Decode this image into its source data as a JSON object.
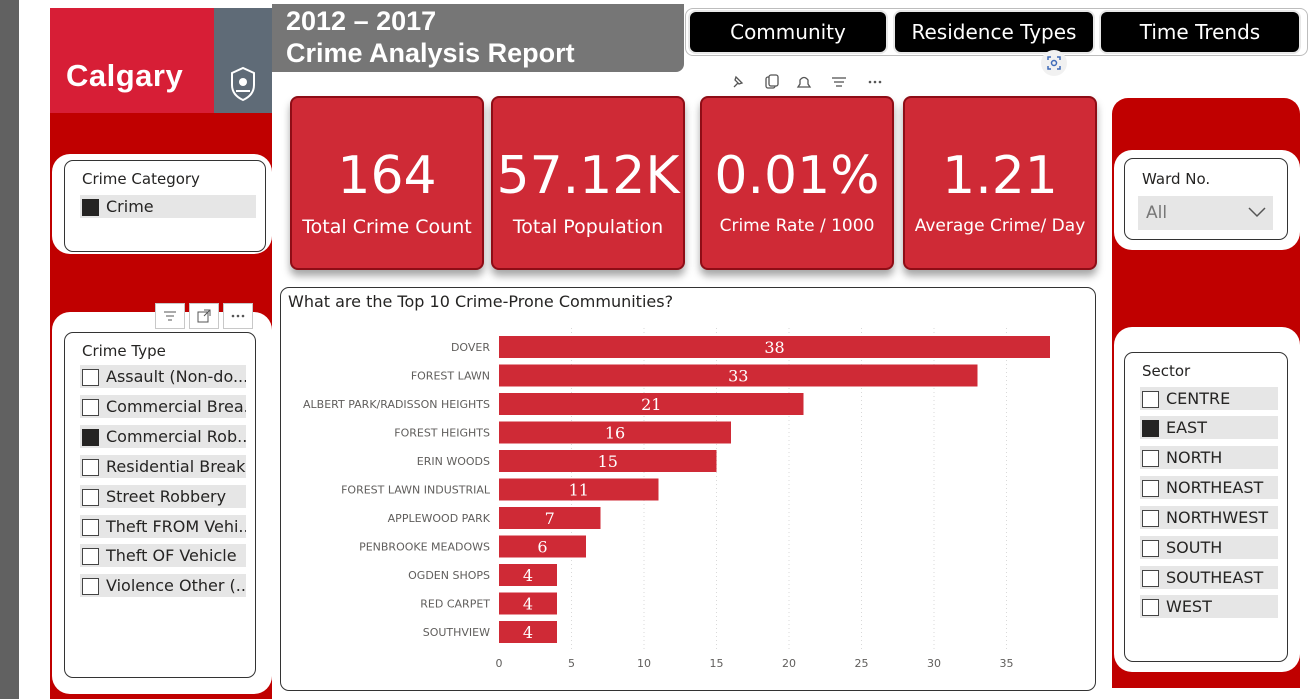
{
  "header": {
    "logo_text": "Calgary",
    "title_line1": "2012 – 2017",
    "title_line2": "Crime Analysis Report"
  },
  "nav": {
    "buttons": [
      "Community",
      "Residence Types",
      "Time Trends"
    ]
  },
  "kpis": [
    {
      "value": "164",
      "label": "Total Crime Count"
    },
    {
      "value": "57.12K",
      "label": "Total Population"
    },
    {
      "value": "0.01%",
      "label": "Crime Rate / 1000"
    },
    {
      "value": "1.21",
      "label": "Average Crime/ Day"
    }
  ],
  "crime_category": {
    "title": "Crime Category",
    "items": [
      {
        "label": "Crime",
        "checked": true
      }
    ]
  },
  "crime_type": {
    "title": "Crime Type",
    "items": [
      {
        "label": "Assault (Non-do...",
        "checked": false
      },
      {
        "label": "Commercial Brea...",
        "checked": false
      },
      {
        "label": "Commercial Rob...",
        "checked": true
      },
      {
        "label": "Residential Break...",
        "checked": false
      },
      {
        "label": "Street Robbery",
        "checked": false
      },
      {
        "label": "Theft FROM Vehi...",
        "checked": false
      },
      {
        "label": "Theft OF Vehicle",
        "checked": false
      },
      {
        "label": "Violence Other (...",
        "checked": false
      }
    ]
  },
  "ward": {
    "title": "Ward No.",
    "selected": "All"
  },
  "sector": {
    "title": "Sector",
    "items": [
      {
        "label": "CENTRE",
        "checked": false
      },
      {
        "label": "EAST",
        "checked": true
      },
      {
        "label": "NORTH",
        "checked": false
      },
      {
        "label": "NORTHEAST",
        "checked": false
      },
      {
        "label": "NORTHWEST",
        "checked": false
      },
      {
        "label": "SOUTH",
        "checked": false
      },
      {
        "label": "SOUTHEAST",
        "checked": false
      },
      {
        "label": "WEST",
        "checked": false
      }
    ]
  },
  "colors": {
    "accent_red": "#c00000",
    "bar_red": "#cf2a36",
    "title_gray": "#767676"
  },
  "icons": {
    "visual_header": [
      "pin-icon",
      "copy-icon",
      "bell-icon",
      "filter-icon",
      "more-icon"
    ],
    "crime_type_header": [
      "filter-icon",
      "expand-icon",
      "more-icon"
    ],
    "focus": "focus-mode-icon"
  },
  "chart_data": {
    "type": "bar",
    "orientation": "horizontal",
    "title": "What are the Top 10 Crime-Prone Communities?",
    "categories": [
      "DOVER",
      "FOREST LAWN",
      "ALBERT PARK/RADISSON HEIGHTS",
      "FOREST HEIGHTS",
      "ERIN WOODS",
      "FOREST LAWN INDUSTRIAL",
      "APPLEWOOD PARK",
      "PENBROOKE MEADOWS",
      "OGDEN SHOPS",
      "RED CARPET",
      "SOUTHVIEW"
    ],
    "values": [
      38,
      33,
      21,
      16,
      15,
      11,
      7,
      6,
      4,
      4,
      4
    ],
    "xticks": [
      0,
      5,
      10,
      15,
      20,
      25,
      30,
      35
    ],
    "xlim": [
      0,
      38.5
    ],
    "grid": true,
    "data_labels": true
  }
}
